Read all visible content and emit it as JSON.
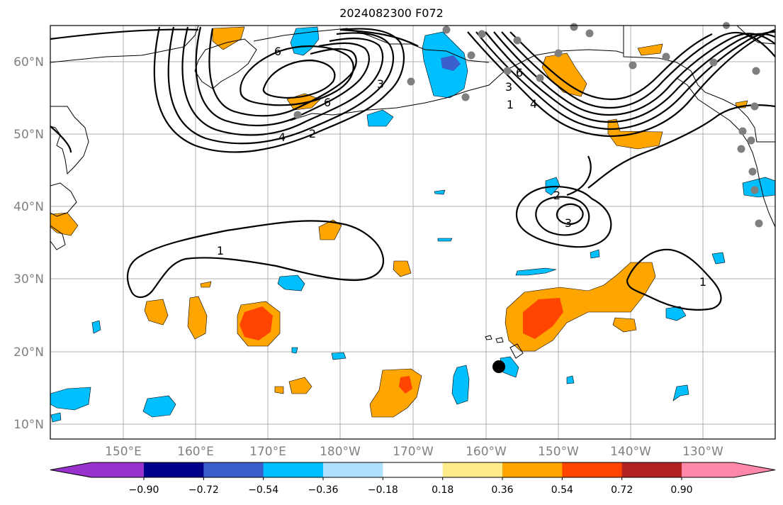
{
  "title": "2024082300 F072",
  "map": {
    "lat_labels": [
      "60°N",
      "50°N",
      "40°N",
      "30°N",
      "20°N",
      "10°N"
    ],
    "lon_labels": [
      "150°E",
      "160°E",
      "170°E",
      "180°W",
      "170°W",
      "160°W",
      "150°W",
      "140°W",
      "130°W"
    ],
    "contour_labels": [
      "6",
      "6",
      "3",
      "2",
      "4",
      "1",
      "3",
      "6",
      "4",
      "2",
      "3",
      "1",
      "1"
    ],
    "grid": true
  },
  "colorbar": {
    "tick_labels": [
      "−0.90",
      "−0.72",
      "−0.54",
      "−0.36",
      "−0.18",
      "0.18",
      "0.36",
      "0.54",
      "0.72",
      "0.90"
    ],
    "colors": [
      "#9932cc",
      "#00008b",
      "#3a5fcd",
      "#00bfff",
      "#b0e2ff",
      "#ffffff",
      "#ffeb8a",
      "#ffa500",
      "#ff4500",
      "#b22222",
      "#ff88aa"
    ],
    "extend": "both"
  },
  "colors": {
    "blue": "#00bfff",
    "dark_blue": "#3a5fcd",
    "orange": "#ffa500",
    "red_orange": "#ff4500",
    "station_marker": "#7f7f7f",
    "storm_marker": "#000000"
  }
}
